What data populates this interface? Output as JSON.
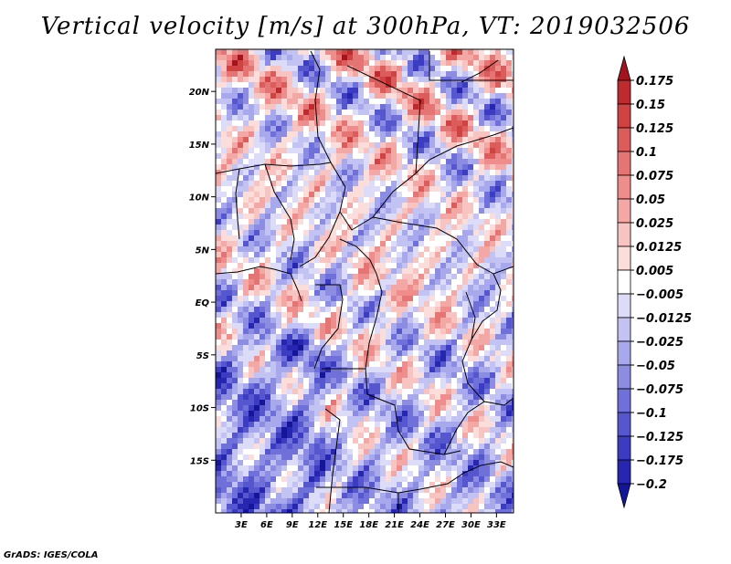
{
  "title": "Vertical velocity [m/s] at 300hPa, VT: 2019032506",
  "credit": "GrADS: IGES/COLA",
  "map": {
    "lon_range": [
      0,
      35
    ],
    "lat_range": [
      -20,
      24
    ],
    "lat_ticks": [
      {
        "value": 20,
        "label": "20N"
      },
      {
        "value": 15,
        "label": "15N"
      },
      {
        "value": 10,
        "label": "10N"
      },
      {
        "value": 5,
        "label": "5N"
      },
      {
        "value": 0,
        "label": "EQ"
      },
      {
        "value": -5,
        "label": "5S"
      },
      {
        "value": -10,
        "label": "10S"
      },
      {
        "value": -15,
        "label": "15S"
      }
    ],
    "lon_ticks": [
      {
        "value": 3,
        "label": "3E"
      },
      {
        "value": 6,
        "label": "6E"
      },
      {
        "value": 9,
        "label": "9E"
      },
      {
        "value": 12,
        "label": "12E"
      },
      {
        "value": 15,
        "label": "15E"
      },
      {
        "value": 18,
        "label": "18E"
      },
      {
        "value": 21,
        "label": "21E"
      },
      {
        "value": 24,
        "label": "24E"
      },
      {
        "value": 27,
        "label": "27E"
      },
      {
        "value": 30,
        "label": "30E"
      },
      {
        "value": 33,
        "label": "33E"
      }
    ]
  },
  "colorbar": {
    "levels": [
      "0.175",
      "0.15",
      "0.125",
      "0.1",
      "0.075",
      "0.05",
      "0.025",
      "0.0125",
      "0.005",
      "−0.005",
      "−0.0125",
      "−0.025",
      "−0.05",
      "−0.075",
      "−0.1",
      "−0.125",
      "−0.175",
      "−0.2"
    ],
    "colors": [
      "#a5141e",
      "#bf2a2e",
      "#cf4443",
      "#dc5c5c",
      "#e57474",
      "#ee8d8b",
      "#f4a8a5",
      "#f8c4c1",
      "#fbdedc",
      "#ffffff",
      "#dcdcf8",
      "#c3c3f3",
      "#a8a8ec",
      "#8c8ce3",
      "#7070da",
      "#5656cf",
      "#3c3cc2",
      "#2626b0",
      "#15159a"
    ]
  }
}
